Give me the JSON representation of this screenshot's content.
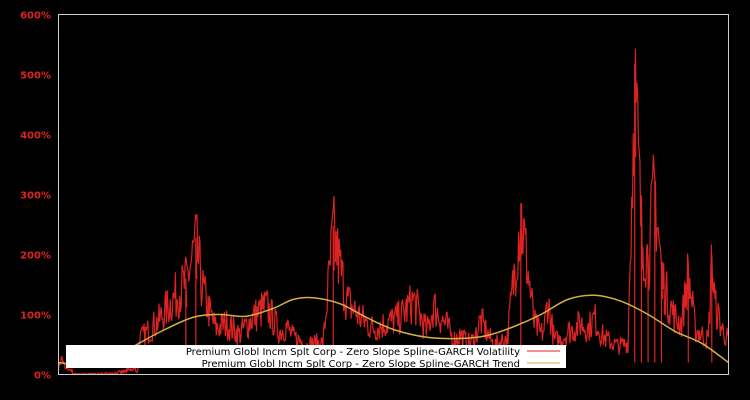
{
  "chart_data": {
    "type": "line",
    "title": "",
    "xlabel": "",
    "ylabel": "",
    "ylim": [
      0,
      600
    ],
    "y_ticks": [
      "0%",
      "100%",
      "200%",
      "300%",
      "400%",
      "500%",
      "600%"
    ],
    "y_tick_values": [
      0,
      100,
      200,
      300,
      400,
      500,
      600
    ],
    "x_tick_labels": [],
    "grid": false,
    "legend_position": "lower-center",
    "background": "#000000",
    "axis_color": "#cccccc",
    "tick_label_color": "#dd2222",
    "series": [
      {
        "name": "Premium Globl Incm Splt Corp - Zero Slope Spline-GARCH Volatility",
        "color": "#dd2222",
        "x_frac": [
          0.0,
          0.005,
          0.01,
          0.03,
          0.06,
          0.09,
          0.12,
          0.15,
          0.17,
          0.19,
          0.205,
          0.215,
          0.225,
          0.235,
          0.25,
          0.27,
          0.29,
          0.31,
          0.33,
          0.34,
          0.35,
          0.36,
          0.37,
          0.38,
          0.395,
          0.41,
          0.43,
          0.45,
          0.47,
          0.49,
          0.51,
          0.53,
          0.55,
          0.56,
          0.57,
          0.58,
          0.59,
          0.6,
          0.61,
          0.62,
          0.63,
          0.65,
          0.67,
          0.69,
          0.71,
          0.72,
          0.725,
          0.73,
          0.74,
          0.75,
          0.76,
          0.77,
          0.78,
          0.79,
          0.8,
          0.81,
          0.82,
          0.835,
          0.85,
          0.86,
          0.87,
          0.88,
          0.89,
          0.9,
          0.905,
          0.91,
          0.92,
          0.93,
          0.94,
          0.95,
          0.96,
          0.97,
          0.975,
          0.98,
          0.985,
          0.99,
          1.0
        ],
        "values": [
          12,
          30,
          10,
          5,
          8,
          20,
          60,
          95,
          130,
          160,
          228,
          150,
          110,
          80,
          90,
          70,
          100,
          120,
          75,
          85,
          65,
          60,
          50,
          55,
          55,
          248,
          130,
          100,
          80,
          90,
          100,
          130,
          75,
          120,
          100,
          85,
          60,
          70,
          55,
          60,
          95,
          50,
          65,
          285,
          90,
          70,
          80,
          130,
          60,
          60,
          75,
          80,
          90,
          80,
          100,
          70,
          60,
          50,
          55,
          518,
          250,
          200,
          330,
          180,
          150,
          130,
          100,
          90,
          180,
          80,
          70,
          60,
          200,
          120,
          100,
          80,
          60
        ]
      },
      {
        "name": "Premium Globl Incm Splt Corp - Zero Slope Spline-GARCH Trend",
        "color": "#d4b040",
        "x_frac": [
          0.0,
          0.05,
          0.1,
          0.15,
          0.2,
          0.24,
          0.28,
          0.32,
          0.35,
          0.38,
          0.42,
          0.46,
          0.5,
          0.55,
          0.6,
          0.64,
          0.68,
          0.72,
          0.76,
          0.8,
          0.84,
          0.88,
          0.92,
          0.96,
          1.0
        ],
        "values": [
          20,
          15,
          40,
          70,
          95,
          100,
          97,
          110,
          125,
          128,
          118,
          95,
          75,
          62,
          60,
          65,
          80,
          100,
          125,
          132,
          122,
          100,
          72,
          52,
          20
        ]
      }
    ]
  },
  "legend": {
    "items": [
      {
        "label": "Premium Globl Incm Splt Corp - Zero Slope Spline-GARCH Volatility",
        "color": "#dd2222"
      },
      {
        "label": "Premium Globl Incm Splt Corp - Zero Slope Spline-GARCH Trend",
        "color": "#d4b040"
      }
    ]
  }
}
